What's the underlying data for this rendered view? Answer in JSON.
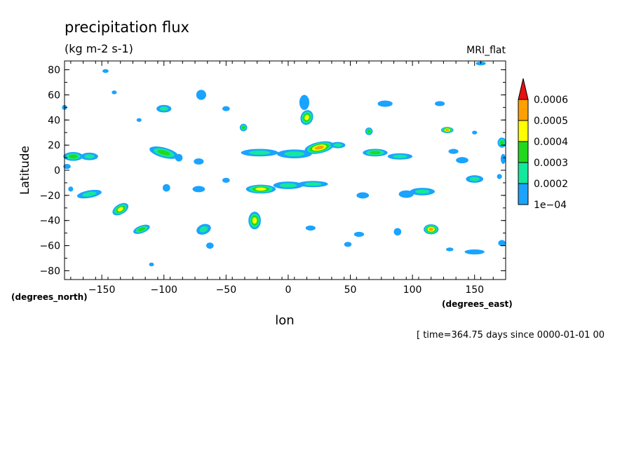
{
  "chart_data": {
    "type": "heatmap",
    "title": "precipitation flux",
    "units": "(kg m-2 s-1)",
    "model_label": "MRI_flat",
    "xlabel": "lon",
    "ylabel": "Latitude",
    "x_units_label": "(degrees_east)",
    "y_units_label": "(degrees_north)",
    "time_label": "[ time=364.75 days since 0000-01-01 00",
    "xlim": [
      -180,
      175
    ],
    "ylim": [
      -87,
      87
    ],
    "x_ticks": [
      -150,
      -100,
      -50,
      0,
      50,
      100,
      150
    ],
    "x_tick_labels": [
      "−150",
      "−100",
      "−50",
      "0",
      "50",
      "100",
      "150"
    ],
    "y_ticks": [
      -80,
      -60,
      -40,
      -20,
      0,
      20,
      40,
      60,
      80
    ],
    "y_tick_labels": [
      "−80",
      "−60",
      "−40",
      "−20",
      "0",
      "20",
      "40",
      "60",
      "80"
    ],
    "grid": false,
    "legend": {
      "placement": "right",
      "levels": [
        0.0001,
        0.0002,
        0.0003,
        0.0004,
        0.0005,
        0.0006
      ],
      "level_labels": [
        "1e−04",
        "0.0002",
        "0.0003",
        "0.0004",
        "0.0005",
        "0.0006"
      ],
      "colors": [
        "#1aa3ff",
        "#14e89c",
        "#22d81c",
        "#ffff00",
        "#ffa000",
        "#e81010"
      ],
      "extend": "max"
    },
    "features": [
      {
        "lon": -173,
        "lat": 11,
        "a": 8,
        "b": 3.5,
        "rot": 0,
        "level": 3
      },
      {
        "lon": -160,
        "lat": 11,
        "a": 7,
        "b": 3,
        "rot": 0,
        "level": 2
      },
      {
        "lon": -178,
        "lat": 3,
        "a": 3,
        "b": 2,
        "rot": 0,
        "level": 1
      },
      {
        "lon": -100,
        "lat": 14,
        "a": 12,
        "b": 4,
        "rot": 15,
        "level": 3
      },
      {
        "lon": -88,
        "lat": 10,
        "a": 3,
        "b": 3,
        "rot": 0,
        "level": 1
      },
      {
        "lon": -72,
        "lat": 7,
        "a": 4,
        "b": 2.5,
        "rot": 0,
        "level": 1
      },
      {
        "lon": -23,
        "lat": 14,
        "a": 15,
        "b": 3,
        "rot": 0,
        "level": 2
      },
      {
        "lon": 5,
        "lat": 13,
        "a": 14,
        "b": 3.5,
        "rot": 0,
        "level": 2
      },
      {
        "lon": 25,
        "lat": 18,
        "a": 12,
        "b": 4.5,
        "rot": -12,
        "level": 5
      },
      {
        "lon": 40,
        "lat": 20,
        "a": 6,
        "b": 2.5,
        "rot": 0,
        "level": 2
      },
      {
        "lon": 70,
        "lat": 14,
        "a": 10,
        "b": 3,
        "rot": 0,
        "level": 3
      },
      {
        "lon": 90,
        "lat": 11,
        "a": 10,
        "b": 2.5,
        "rot": 0,
        "level": 2
      },
      {
        "lon": 133,
        "lat": 15,
        "a": 4,
        "b": 2,
        "rot": 0,
        "level": 1
      },
      {
        "lon": 140,
        "lat": 8,
        "a": 5,
        "b": 2.5,
        "rot": 0,
        "level": 1
      },
      {
        "lon": 172,
        "lat": 22,
        "a": 3.5,
        "b": 4,
        "rot": 0,
        "level": 3
      },
      {
        "lon": 173,
        "lat": 9,
        "a": 2,
        "b": 4,
        "rot": 0,
        "level": 1
      },
      {
        "lon": -160,
        "lat": -19,
        "a": 10,
        "b": 3,
        "rot": -10,
        "level": 2
      },
      {
        "lon": -135,
        "lat": -31,
        "a": 7,
        "b": 4,
        "rot": -30,
        "level": 4
      },
      {
        "lon": -118,
        "lat": -47,
        "a": 7,
        "b": 3,
        "rot": -20,
        "level": 3
      },
      {
        "lon": -98,
        "lat": -14,
        "a": 3,
        "b": 3,
        "rot": 0,
        "level": 1
      },
      {
        "lon": -72,
        "lat": -15,
        "a": 5,
        "b": 2.5,
        "rot": 0,
        "level": 1
      },
      {
        "lon": -50,
        "lat": -8,
        "a": 3,
        "b": 2,
        "rot": 0,
        "level": 1
      },
      {
        "lon": -22,
        "lat": -15,
        "a": 12,
        "b": 3.5,
        "rot": 0,
        "level": 4
      },
      {
        "lon": 0,
        "lat": -12,
        "a": 12,
        "b": 3,
        "rot": 0,
        "level": 2
      },
      {
        "lon": 20,
        "lat": -11,
        "a": 12,
        "b": 2.5,
        "rot": 0,
        "level": 2
      },
      {
        "lon": 60,
        "lat": -20,
        "a": 5,
        "b": 2.5,
        "rot": 0,
        "level": 1
      },
      {
        "lon": 95,
        "lat": -19,
        "a": 6,
        "b": 3,
        "rot": 0,
        "level": 1
      },
      {
        "lon": 108,
        "lat": -17,
        "a": 10,
        "b": 3,
        "rot": 0,
        "level": 2
      },
      {
        "lon": 150,
        "lat": -7,
        "a": 7,
        "b": 3,
        "rot": 0,
        "level": 2
      },
      {
        "lon": -68,
        "lat": -47,
        "a": 6,
        "b": 4,
        "rot": -20,
        "level": 2
      },
      {
        "lon": -63,
        "lat": -60,
        "a": 3,
        "b": 2.5,
        "rot": 0,
        "level": 1
      },
      {
        "lon": -27,
        "lat": -40,
        "a": 5,
        "b": 7,
        "rot": 0,
        "level": 4
      },
      {
        "lon": 18,
        "lat": -46,
        "a": 4,
        "b": 2,
        "rot": 0,
        "level": 1
      },
      {
        "lon": 115,
        "lat": -47,
        "a": 6,
        "b": 4,
        "rot": 0,
        "level": 5
      },
      {
        "lon": 88,
        "lat": -49,
        "a": 3,
        "b": 3,
        "rot": 0,
        "level": 1
      },
      {
        "lon": 57,
        "lat": -51,
        "a": 4,
        "b": 2,
        "rot": 0,
        "level": 1
      },
      {
        "lon": 48,
        "lat": -59,
        "a": 3,
        "b": 2,
        "rot": 0,
        "level": 1
      },
      {
        "lon": 172,
        "lat": -58,
        "a": 3,
        "b": 2.5,
        "rot": 0,
        "level": 1
      },
      {
        "lon": 150,
        "lat": -65,
        "a": 8,
        "b": 2,
        "rot": 0,
        "level": 1
      },
      {
        "lon": -100,
        "lat": 49,
        "a": 6,
        "b": 3,
        "rot": 0,
        "level": 2
      },
      {
        "lon": -70,
        "lat": 60,
        "a": 4,
        "b": 4,
        "rot": 0,
        "level": 1
      },
      {
        "lon": -50,
        "lat": 49,
        "a": 3,
        "b": 2,
        "rot": 0,
        "level": 1
      },
      {
        "lon": -36,
        "lat": 34,
        "a": 3,
        "b": 3,
        "rot": 0,
        "level": 3
      },
      {
        "lon": 13,
        "lat": 54,
        "a": 4,
        "b": 6,
        "rot": 0,
        "level": 1
      },
      {
        "lon": 15,
        "lat": 42,
        "a": 5,
        "b": 6,
        "rot": 20,
        "level": 4
      },
      {
        "lon": 65,
        "lat": 31,
        "a": 3,
        "b": 3,
        "rot": 0,
        "level": 3
      },
      {
        "lon": 78,
        "lat": 53,
        "a": 6,
        "b": 2.5,
        "rot": 0,
        "level": 1
      },
      {
        "lon": 128,
        "lat": 32,
        "a": 5,
        "b": 2.5,
        "rot": 0,
        "level": 5
      },
      {
        "lon": 122,
        "lat": 53,
        "a": 4,
        "b": 2,
        "rot": 0,
        "level": 1
      },
      {
        "lon": 155,
        "lat": 85,
        "a": 4,
        "b": 1.5,
        "rot": 0,
        "level": 1
      },
      {
        "lon": -147,
        "lat": 79,
        "a": 2.5,
        "b": 1.5,
        "rot": 0,
        "level": 1
      },
      {
        "lon": -180,
        "lat": 50,
        "a": 2,
        "b": 2,
        "rot": 0,
        "level": 1
      },
      {
        "lon": -140,
        "lat": 62,
        "a": 2,
        "b": 1.5,
        "rot": 0,
        "level": 1
      },
      {
        "lon": -120,
        "lat": 40,
        "a": 2,
        "b": 1.5,
        "rot": 0,
        "level": 1
      },
      {
        "lon": 150,
        "lat": 30,
        "a": 2,
        "b": 1.5,
        "rot": 0,
        "level": 1
      },
      {
        "lon": 170,
        "lat": -5,
        "a": 2,
        "b": 2,
        "rot": 0,
        "level": 1
      },
      {
        "lon": -175,
        "lat": -15,
        "a": 2,
        "b": 2,
        "rot": 0,
        "level": 1
      },
      {
        "lon": -110,
        "lat": -75,
        "a": 2,
        "b": 1.5,
        "rot": 0,
        "level": 1
      },
      {
        "lon": 130,
        "lat": -63,
        "a": 3,
        "b": 1.5,
        "rot": 0,
        "level": 1
      }
    ]
  }
}
